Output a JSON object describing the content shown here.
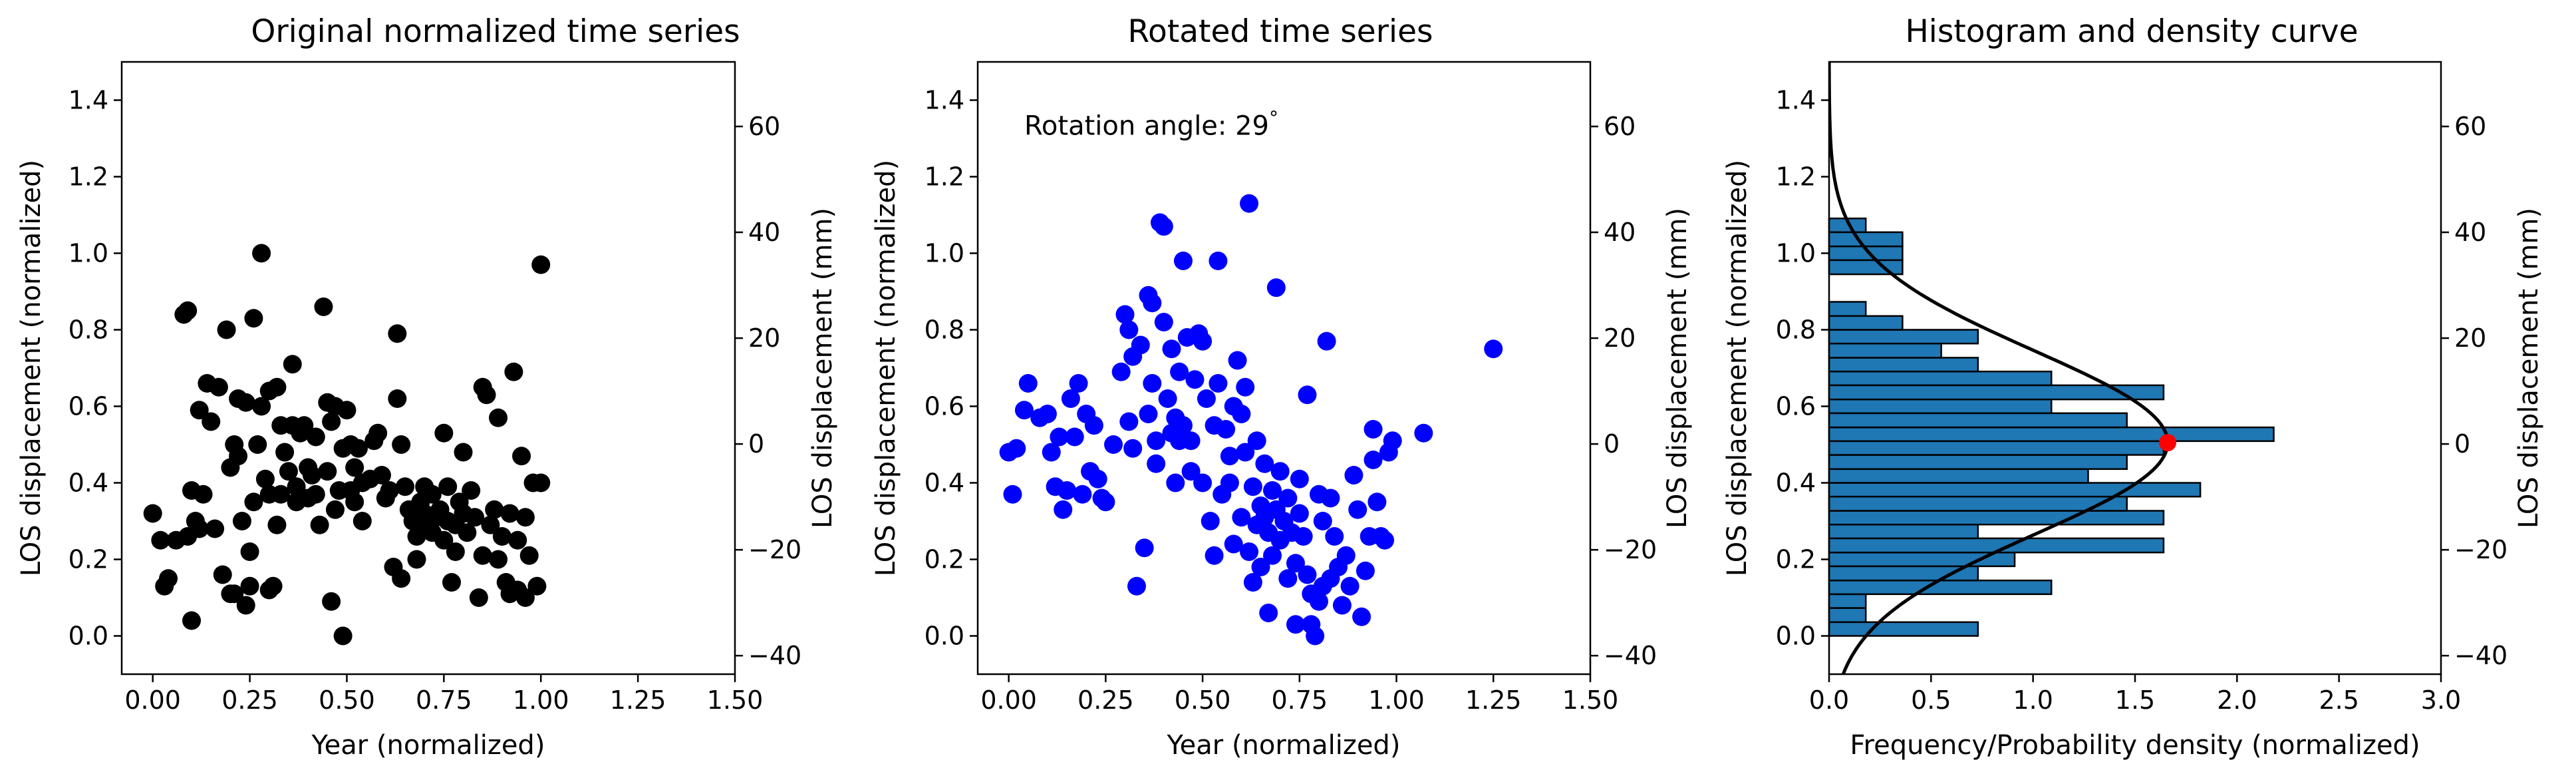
{
  "chart_data": [
    {
      "type": "scatter",
      "title": "Original normalized time series",
      "xlabel": "Year (normalized)",
      "ylabel": "LOS displacement (normalized)",
      "ylabel_right": "LOS displacement (mm)",
      "xlim": [
        -0.08,
        1.5
      ],
      "ylim": [
        -0.1,
        1.5
      ],
      "xticks": [
        "0.00",
        "0.25",
        "0.50",
        "0.75",
        "1.00",
        "1.25",
        "1.50"
      ],
      "yticks": [
        "0.0",
        "0.2",
        "0.4",
        "0.6",
        "0.8",
        "1.0",
        "1.2",
        "1.4"
      ],
      "y2lim": [
        -43.5,
        72.2
      ],
      "y2ticks": [
        "−40",
        "−20",
        "0",
        "20",
        "40",
        "60"
      ],
      "marker_color": "#000000",
      "points": [
        [
          0.0,
          0.32
        ],
        [
          0.02,
          0.25
        ],
        [
          0.03,
          0.13
        ],
        [
          0.04,
          0.15
        ],
        [
          0.06,
          0.25
        ],
        [
          0.08,
          0.84
        ],
        [
          0.09,
          0.85
        ],
        [
          0.09,
          0.26
        ],
        [
          0.1,
          0.04
        ],
        [
          0.1,
          0.38
        ],
        [
          0.11,
          0.3
        ],
        [
          0.12,
          0.59
        ],
        [
          0.12,
          0.28
        ],
        [
          0.13,
          0.37
        ],
        [
          0.14,
          0.66
        ],
        [
          0.15,
          0.56
        ],
        [
          0.16,
          0.28
        ],
        [
          0.17,
          0.65
        ],
        [
          0.18,
          0.16
        ],
        [
          0.19,
          0.8
        ],
        [
          0.2,
          0.11
        ],
        [
          0.2,
          0.44
        ],
        [
          0.21,
          0.5
        ],
        [
          0.21,
          0.11
        ],
        [
          0.22,
          0.62
        ],
        [
          0.22,
          0.47
        ],
        [
          0.23,
          0.3
        ],
        [
          0.24,
          0.08
        ],
        [
          0.24,
          0.61
        ],
        [
          0.25,
          0.13
        ],
        [
          0.25,
          0.22
        ],
        [
          0.26,
          0.83
        ],
        [
          0.26,
          0.35
        ],
        [
          0.27,
          0.5
        ],
        [
          0.28,
          1.0
        ],
        [
          0.28,
          0.6
        ],
        [
          0.29,
          0.41
        ],
        [
          0.3,
          0.64
        ],
        [
          0.3,
          0.12
        ],
        [
          0.3,
          0.37
        ],
        [
          0.31,
          0.13
        ],
        [
          0.32,
          0.65
        ],
        [
          0.32,
          0.29
        ],
        [
          0.33,
          0.55
        ],
        [
          0.33,
          0.37
        ],
        [
          0.34,
          0.48
        ],
        [
          0.35,
          0.43
        ],
        [
          0.36,
          0.55
        ],
        [
          0.36,
          0.71
        ],
        [
          0.37,
          0.35
        ],
        [
          0.37,
          0.39
        ],
        [
          0.38,
          0.53
        ],
        [
          0.39,
          0.55
        ],
        [
          0.4,
          0.44
        ],
        [
          0.4,
          0.36
        ],
        [
          0.41,
          0.42
        ],
        [
          0.42,
          0.37
        ],
        [
          0.42,
          0.52
        ],
        [
          0.43,
          0.29
        ],
        [
          0.44,
          0.86
        ],
        [
          0.45,
          0.61
        ],
        [
          0.45,
          0.43
        ],
        [
          0.46,
          0.09
        ],
        [
          0.46,
          0.56
        ],
        [
          0.47,
          0.6
        ],
        [
          0.47,
          0.33
        ],
        [
          0.48,
          0.38
        ],
        [
          0.49,
          0.0
        ],
        [
          0.49,
          0.49
        ],
        [
          0.5,
          0.59
        ],
        [
          0.51,
          0.38
        ],
        [
          0.51,
          0.5
        ],
        [
          0.52,
          0.44
        ],
        [
          0.52,
          0.35
        ],
        [
          0.53,
          0.49
        ],
        [
          0.54,
          0.4
        ],
        [
          0.54,
          0.3
        ],
        [
          0.56,
          0.41
        ],
        [
          0.57,
          0.51
        ],
        [
          0.58,
          0.53
        ],
        [
          0.59,
          0.42
        ],
        [
          0.6,
          0.36
        ],
        [
          0.61,
          0.38
        ],
        [
          0.62,
          0.18
        ],
        [
          0.63,
          0.79
        ],
        [
          0.63,
          0.62
        ],
        [
          0.64,
          0.15
        ],
        [
          0.64,
          0.5
        ],
        [
          0.65,
          0.39
        ],
        [
          0.66,
          0.33
        ],
        [
          0.67,
          0.3
        ],
        [
          0.68,
          0.26
        ],
        [
          0.68,
          0.2
        ],
        [
          0.69,
          0.35
        ],
        [
          0.7,
          0.39
        ],
        [
          0.7,
          0.32
        ],
        [
          0.71,
          0.29
        ],
        [
          0.72,
          0.37
        ],
        [
          0.72,
          0.27
        ],
        [
          0.73,
          0.31
        ],
        [
          0.74,
          0.33
        ],
        [
          0.75,
          0.25
        ],
        [
          0.75,
          0.53
        ],
        [
          0.76,
          0.39
        ],
        [
          0.76,
          0.3
        ],
        [
          0.77,
          0.14
        ],
        [
          0.78,
          0.29
        ],
        [
          0.78,
          0.22
        ],
        [
          0.79,
          0.35
        ],
        [
          0.8,
          0.32
        ],
        [
          0.8,
          0.48
        ],
        [
          0.81,
          0.27
        ],
        [
          0.82,
          0.38
        ],
        [
          0.83,
          0.31
        ],
        [
          0.84,
          0.1
        ],
        [
          0.85,
          0.65
        ],
        [
          0.85,
          0.21
        ],
        [
          0.86,
          0.63
        ],
        [
          0.87,
          0.29
        ],
        [
          0.88,
          0.33
        ],
        [
          0.89,
          0.2
        ],
        [
          0.89,
          0.57
        ],
        [
          0.9,
          0.26
        ],
        [
          0.91,
          0.14
        ],
        [
          0.92,
          0.11
        ],
        [
          0.92,
          0.32
        ],
        [
          0.93,
          0.69
        ],
        [
          0.94,
          0.25
        ],
        [
          0.94,
          0.12
        ],
        [
          0.95,
          0.47
        ],
        [
          0.96,
          0.31
        ],
        [
          0.96,
          0.1
        ],
        [
          0.97,
          0.21
        ],
        [
          0.98,
          0.4
        ],
        [
          0.99,
          0.13
        ],
        [
          1.0,
          0.4
        ],
        [
          1.0,
          0.97
        ]
      ]
    },
    {
      "type": "scatter",
      "title": "Rotated time series",
      "xlabel": "Year (normalized)",
      "ylabel": "LOS displacement (normalized)",
      "ylabel_right": "LOS displacement (mm)",
      "annotation": "Rotation angle: 29$^\\circ$",
      "annotation_display": "Rotation angle: 29",
      "annotation_sup": "°",
      "annotation_color": "#ff0000",
      "annotation_at": [
        0.04,
        1.31
      ],
      "xlim": [
        -0.08,
        1.5
      ],
      "ylim": [
        -0.1,
        1.5
      ],
      "xticks": [
        "0.00",
        "0.25",
        "0.50",
        "0.75",
        "1.00",
        "1.25",
        "1.50"
      ],
      "yticks": [
        "0.0",
        "0.2",
        "0.4",
        "0.6",
        "0.8",
        "1.0",
        "1.2",
        "1.4"
      ],
      "y2lim": [
        -43.5,
        72.2
      ],
      "y2ticks": [
        "−40",
        "−20",
        "0",
        "20",
        "40",
        "60"
      ],
      "marker_color": "#0000ff",
      "points": [
        [
          0.0,
          0.48
        ],
        [
          0.01,
          0.37
        ],
        [
          0.02,
          0.49
        ],
        [
          0.04,
          0.59
        ],
        [
          0.05,
          0.66
        ],
        [
          0.08,
          0.57
        ],
        [
          0.1,
          0.58
        ],
        [
          0.11,
          0.48
        ],
        [
          0.12,
          0.39
        ],
        [
          0.13,
          0.52
        ],
        [
          0.14,
          0.33
        ],
        [
          0.15,
          0.38
        ],
        [
          0.16,
          0.62
        ],
        [
          0.17,
          0.52
        ],
        [
          0.18,
          0.66
        ],
        [
          0.19,
          0.37
        ],
        [
          0.2,
          0.58
        ],
        [
          0.21,
          0.43
        ],
        [
          0.22,
          0.55
        ],
        [
          0.23,
          0.41
        ],
        [
          0.24,
          0.36
        ],
        [
          0.25,
          0.35
        ],
        [
          0.27,
          0.5
        ],
        [
          0.29,
          0.69
        ],
        [
          0.3,
          0.84
        ],
        [
          0.31,
          0.8
        ],
        [
          0.31,
          0.56
        ],
        [
          0.32,
          0.73
        ],
        [
          0.32,
          0.49
        ],
        [
          0.33,
          0.13
        ],
        [
          0.34,
          0.76
        ],
        [
          0.35,
          0.23
        ],
        [
          0.36,
          0.89
        ],
        [
          0.36,
          0.58
        ],
        [
          0.37,
          0.87
        ],
        [
          0.37,
          0.66
        ],
        [
          0.38,
          0.51
        ],
        [
          0.38,
          0.45
        ],
        [
          0.39,
          1.08
        ],
        [
          0.4,
          0.82
        ],
        [
          0.4,
          1.07
        ],
        [
          0.41,
          0.62
        ],
        [
          0.42,
          0.53
        ],
        [
          0.42,
          0.75
        ],
        [
          0.43,
          0.57
        ],
        [
          0.43,
          0.4
        ],
        [
          0.44,
          0.51
        ],
        [
          0.44,
          0.69
        ],
        [
          0.45,
          0.98
        ],
        [
          0.45,
          0.55
        ],
        [
          0.46,
          0.78
        ],
        [
          0.47,
          0.43
        ],
        [
          0.47,
          0.51
        ],
        [
          0.48,
          0.67
        ],
        [
          0.49,
          0.79
        ],
        [
          0.5,
          0.77
        ],
        [
          0.5,
          0.4
        ],
        [
          0.51,
          0.62
        ],
        [
          0.52,
          0.3
        ],
        [
          0.53,
          0.55
        ],
        [
          0.53,
          0.21
        ],
        [
          0.54,
          0.98
        ],
        [
          0.54,
          0.66
        ],
        [
          0.55,
          0.37
        ],
        [
          0.56,
          0.54
        ],
        [
          0.57,
          0.47
        ],
        [
          0.57,
          0.4
        ],
        [
          0.58,
          0.24
        ],
        [
          0.58,
          0.6
        ],
        [
          0.59,
          0.72
        ],
        [
          0.6,
          0.31
        ],
        [
          0.6,
          0.58
        ],
        [
          0.61,
          0.48
        ],
        [
          0.61,
          0.65
        ],
        [
          0.62,
          0.22
        ],
        [
          0.62,
          1.13
        ],
        [
          0.63,
          0.39
        ],
        [
          0.63,
          0.14
        ],
        [
          0.64,
          0.29
        ],
        [
          0.64,
          0.51
        ],
        [
          0.65,
          0.34
        ],
        [
          0.65,
          0.18
        ],
        [
          0.66,
          0.45
        ],
        [
          0.66,
          0.31
        ],
        [
          0.67,
          0.06
        ],
        [
          0.67,
          0.27
        ],
        [
          0.68,
          0.38
        ],
        [
          0.68,
          0.21
        ],
        [
          0.69,
          0.91
        ],
        [
          0.69,
          0.33
        ],
        [
          0.7,
          0.25
        ],
        [
          0.7,
          0.43
        ],
        [
          0.71,
          0.3
        ],
        [
          0.72,
          0.15
        ],
        [
          0.72,
          0.36
        ],
        [
          0.73,
          0.27
        ],
        [
          0.74,
          0.03
        ],
        [
          0.74,
          0.19
        ],
        [
          0.75,
          0.32
        ],
        [
          0.75,
          0.41
        ],
        [
          0.76,
          0.26
        ],
        [
          0.77,
          0.63
        ],
        [
          0.77,
          0.16
        ],
        [
          0.78,
          0.03
        ],
        [
          0.78,
          0.11
        ],
        [
          0.79,
          0.0
        ],
        [
          0.8,
          0.37
        ],
        [
          0.8,
          0.09
        ],
        [
          0.81,
          0.3
        ],
        [
          0.81,
          0.13
        ],
        [
          0.82,
          0.77
        ],
        [
          0.83,
          0.36
        ],
        [
          0.83,
          0.15
        ],
        [
          0.84,
          0.26
        ],
        [
          0.85,
          0.18
        ],
        [
          0.86,
          0.08
        ],
        [
          0.87,
          0.21
        ],
        [
          0.88,
          0.13
        ],
        [
          0.89,
          0.42
        ],
        [
          0.9,
          0.33
        ],
        [
          0.91,
          0.05
        ],
        [
          0.92,
          0.17
        ],
        [
          0.93,
          0.26
        ],
        [
          0.94,
          0.46
        ],
        [
          0.94,
          0.54
        ],
        [
          0.95,
          0.35
        ],
        [
          0.96,
          0.26
        ],
        [
          0.97,
          0.25
        ],
        [
          0.98,
          0.48
        ],
        [
          0.99,
          0.51
        ],
        [
          1.07,
          0.53
        ],
        [
          1.25,
          0.75
        ]
      ]
    },
    {
      "type": "histogram",
      "title": "Histogram and density curve",
      "xlabel": "Frequency/Probability density (normalized)",
      "ylabel": "LOS displacement (normalized)",
      "ylabel_right": "LOS displacement (mm)",
      "orientation": "horizontal",
      "xlim": [
        0,
        3.0
      ],
      "ylim": [
        -0.1,
        1.5
      ],
      "xticks": [
        "0.0",
        "0.5",
        "1.0",
        "1.5",
        "2.0",
        "2.5",
        "3.0"
      ],
      "yticks": [
        "0.0",
        "0.2",
        "0.4",
        "0.6",
        "0.8",
        "1.0",
        "1.2",
        "1.4"
      ],
      "y2lim": [
        -43.5,
        72.2
      ],
      "y2ticks": [
        "−40",
        "−20",
        "0",
        "20",
        "40",
        "60"
      ],
      "bar_color": "#1f77b4",
      "bin_edges": [
        0.0,
        0.036,
        0.073,
        0.109,
        0.145,
        0.182,
        0.218,
        0.255,
        0.291,
        0.327,
        0.364,
        0.4,
        0.436,
        0.473,
        0.509,
        0.545,
        0.582,
        0.618,
        0.655,
        0.691,
        0.727,
        0.764,
        0.8,
        0.836,
        0.873,
        0.909,
        0.945,
        0.982,
        1.018,
        1.055,
        1.091,
        1.127
      ],
      "bin_values": [
        0.73,
        0.18,
        0.18,
        1.09,
        0.73,
        0.91,
        1.64,
        0.73,
        1.64,
        1.46,
        1.82,
        1.27,
        1.46,
        1.64,
        2.18,
        1.46,
        1.09,
        1.64,
        1.09,
        0.73,
        0.55,
        0.73,
        0.36,
        0.18,
        0.0,
        0.0,
        0.36,
        0.36,
        0.36,
        0.18,
        0.0
      ],
      "density_mean": 0.505,
      "density_peak": 1.66,
      "density_sd": 0.24,
      "density_range": [
        -0.18,
        1.55
      ],
      "peak_point": [
        1.66,
        0.505
      ],
      "peak_color": "#ff0000"
    }
  ]
}
